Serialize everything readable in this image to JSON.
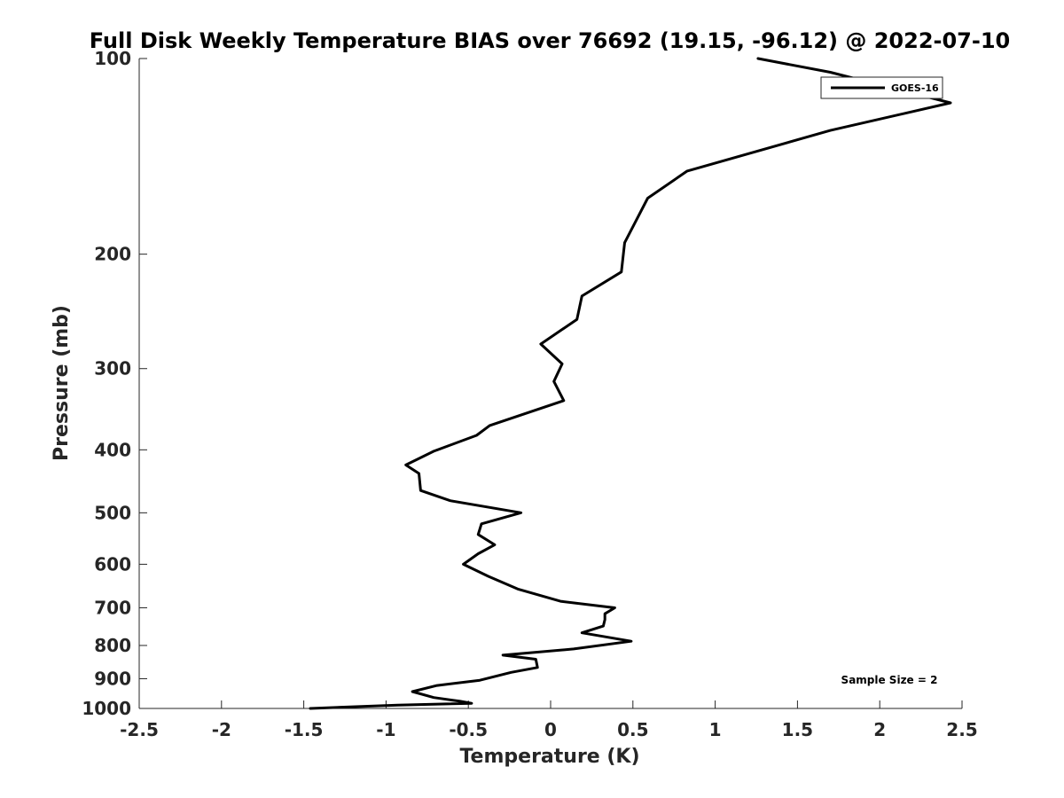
{
  "chart_data": {
    "type": "line",
    "title": "Full Disk Weekly Temperature BIAS over 76692 (19.15, -96.12) @ 2022-07-10",
    "xlabel": "Temperature (K)",
    "ylabel": "Pressure (mb)",
    "xlim": [
      -2.5,
      2.5
    ],
    "ylim": [
      100,
      1000
    ],
    "y_scale": "log",
    "y_reversed": true,
    "xticks": [
      "-2.5",
      "-2",
      "-1.5",
      "-1",
      "-0.5",
      "0",
      "0.5",
      "1",
      "1.5",
      "2",
      "2.5"
    ],
    "yticks": [
      "100",
      "200",
      "300",
      "400",
      "500",
      "600",
      "700",
      "800",
      "900",
      "1000"
    ],
    "grid": false,
    "legend_position": "top-right",
    "annotation": "Sample Size = 2",
    "series": [
      {
        "name": "GOES-16",
        "color": "#000000",
        "points": [
          [
            1.26,
            100
          ],
          [
            1.7,
            105
          ],
          [
            2.43,
            117
          ],
          [
            1.7,
            129
          ],
          [
            0.83,
            149
          ],
          [
            0.59,
            164
          ],
          [
            0.45,
            192
          ],
          [
            0.43,
            213
          ],
          [
            0.19,
            232
          ],
          [
            0.16,
            252
          ],
          [
            -0.06,
            275
          ],
          [
            0.07,
            295
          ],
          [
            0.02,
            314
          ],
          [
            0.08,
            336
          ],
          [
            -0.37,
            367
          ],
          [
            -0.45,
            380
          ],
          [
            -0.71,
            402
          ],
          [
            -0.88,
            422
          ],
          [
            -0.8,
            435
          ],
          [
            -0.79,
            462
          ],
          [
            -0.61,
            479
          ],
          [
            -0.18,
            500
          ],
          [
            -0.42,
            520
          ],
          [
            -0.44,
            540
          ],
          [
            -0.34,
            560
          ],
          [
            -0.44,
            578
          ],
          [
            -0.53,
            600
          ],
          [
            -0.38,
            626
          ],
          [
            -0.2,
            655
          ],
          [
            0.06,
            684
          ],
          [
            0.39,
            700
          ],
          [
            0.33,
            715
          ],
          [
            0.33,
            730
          ],
          [
            0.32,
            747
          ],
          [
            0.19,
            765
          ],
          [
            0.49,
            788
          ],
          [
            0.14,
            810
          ],
          [
            -0.29,
            828
          ],
          [
            -0.09,
            840
          ],
          [
            -0.08,
            865
          ],
          [
            -0.24,
            880
          ],
          [
            -0.43,
            905
          ],
          [
            -0.69,
            922
          ],
          [
            -0.84,
            942
          ],
          [
            -0.71,
            962
          ],
          [
            -0.55,
            975
          ],
          [
            -0.48,
            982
          ],
          [
            -0.93,
            988
          ],
          [
            -1.46,
            1000
          ]
        ]
      }
    ]
  }
}
